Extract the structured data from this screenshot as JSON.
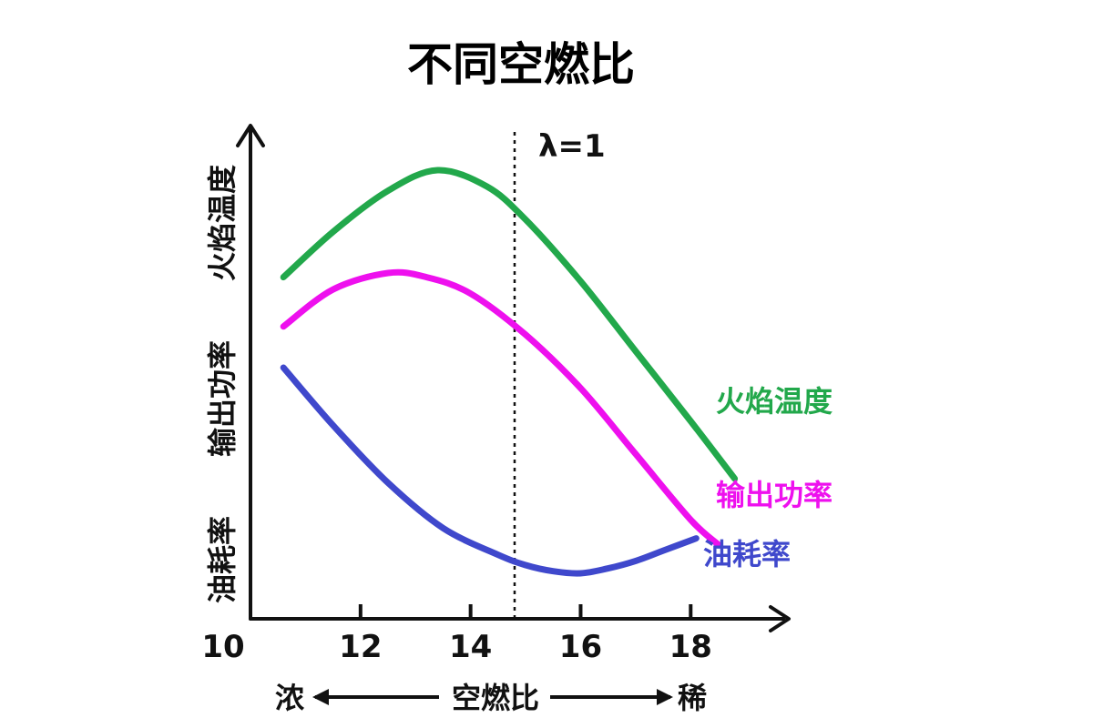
{
  "chart_data": {
    "type": "line",
    "title": "不同空燃比",
    "xlabel": "空燃比",
    "xlim": [
      10,
      19.7
    ],
    "ylim": [
      0,
      10
    ],
    "x_ticks": [
      "10",
      "12",
      "14",
      "16",
      "18"
    ],
    "ylabel_parts": [
      "油耗率",
      "输出功率",
      "火焰温度"
    ],
    "y_ticks_shown": false,
    "grid": false,
    "legend": "inline-right",
    "reference_line": {
      "x": 14.8,
      "label": "λ=1",
      "style": "dotted"
    },
    "direction_labels": {
      "rich": "浓",
      "lean": "稀"
    },
    "series": [
      {
        "name": "火焰温度",
        "color": "#22a84b",
        "x": [
          10.6,
          11.5,
          12.5,
          13.4,
          14.3,
          15.0,
          16.0,
          17.0,
          18.0,
          18.8
        ],
        "y": [
          7.2,
          8.3,
          9.3,
          9.8,
          9.4,
          8.6,
          7.1,
          5.4,
          3.7,
          2.3
        ]
      },
      {
        "name": "输出功率",
        "color": "#ee10ee",
        "x": [
          10.6,
          11.5,
          12.5,
          13.2,
          14.0,
          15.0,
          16.0,
          17.0,
          18.0,
          18.5
        ],
        "y": [
          6.0,
          6.9,
          7.3,
          7.2,
          6.8,
          5.8,
          4.5,
          2.9,
          1.3,
          0.7
        ]
      },
      {
        "name": "油耗率",
        "color": "#3f48cc",
        "x": [
          10.6,
          11.5,
          12.5,
          13.5,
          14.5,
          15.0,
          15.5,
          16.0,
          16.5,
          17.0,
          17.5,
          18.1
        ],
        "y": [
          5.0,
          3.6,
          2.2,
          1.1,
          0.45,
          0.2,
          0.05,
          0.0,
          0.12,
          0.3,
          0.55,
          0.85
        ]
      }
    ]
  }
}
